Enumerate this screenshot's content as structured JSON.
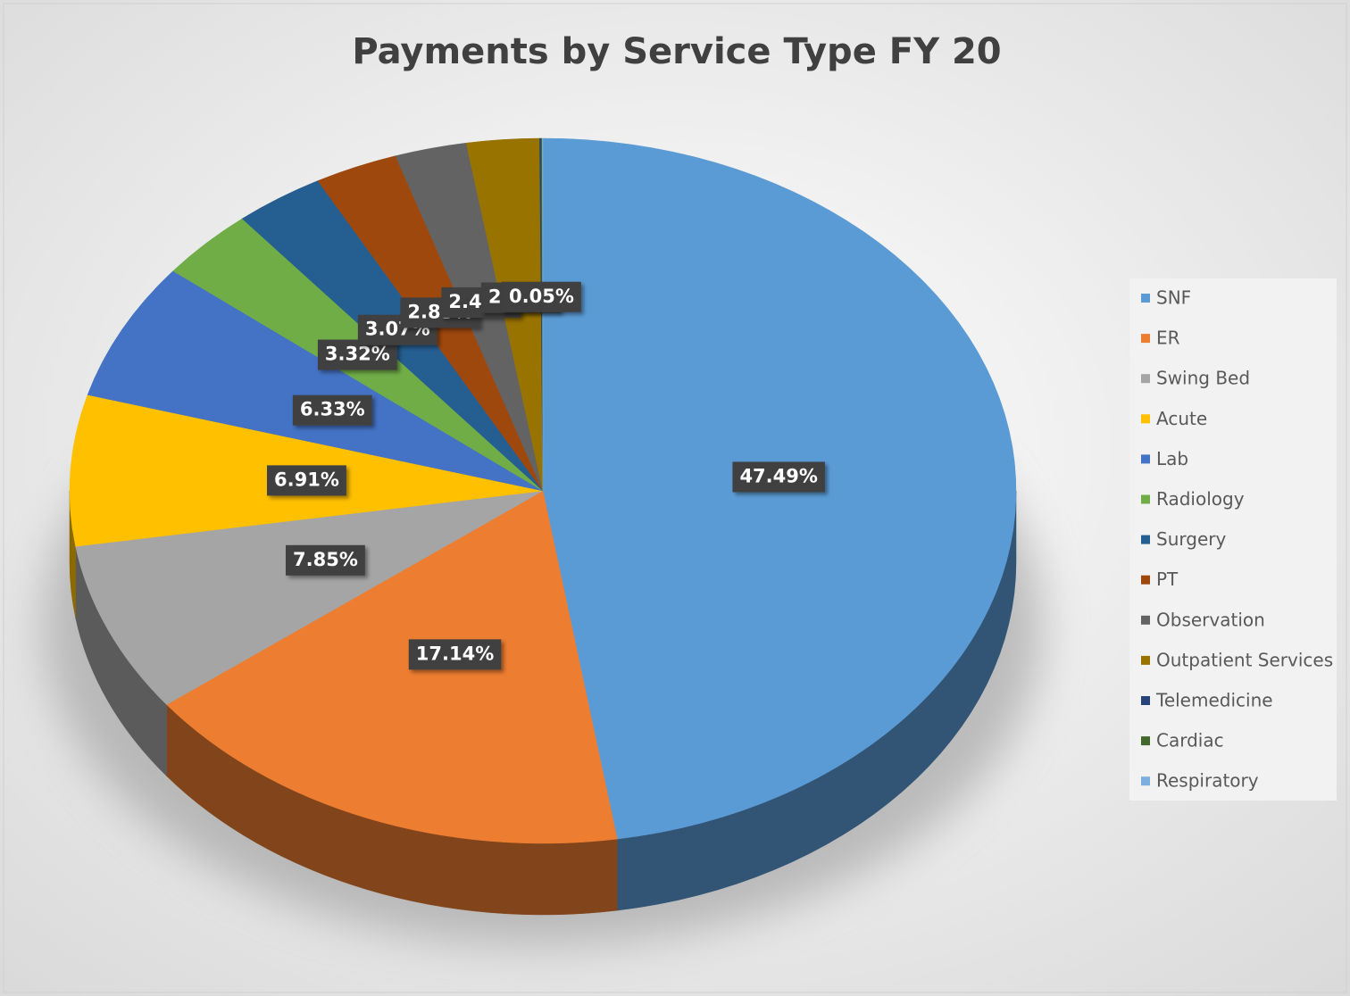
{
  "chart_data": {
    "type": "pie",
    "title": "Payments by Service Type FY 20",
    "categories": [
      "SNF",
      "ER",
      "Swing Bed",
      "Acute",
      "Lab",
      "Radiology",
      "Surgery",
      "PT",
      "Observation",
      "Outpatient Services",
      "Telemedicine",
      "Cardiac",
      "Respiratory"
    ],
    "values": [
      47.49,
      17.14,
      7.85,
      6.91,
      6.33,
      3.32,
      3.07,
      2.85,
      2.45,
      2.48,
      0.05,
      0.04,
      0.02
    ],
    "value_labels": [
      "47.49%",
      "17.14%",
      "7.85%",
      "6.91%",
      "6.33%",
      "3.32%",
      "3.07%",
      "2.85%",
      "2.45%",
      "2.48%",
      "0.05%",
      null,
      null
    ],
    "colors": [
      "#5b9bd5",
      "#ed7d31",
      "#a5a5a5",
      "#ffc000",
      "#4472c4",
      "#70ad47",
      "#255e91",
      "#9e480e",
      "#636363",
      "#997300",
      "#264478",
      "#43682b",
      "#7cafdd"
    ],
    "legend": "right"
  }
}
